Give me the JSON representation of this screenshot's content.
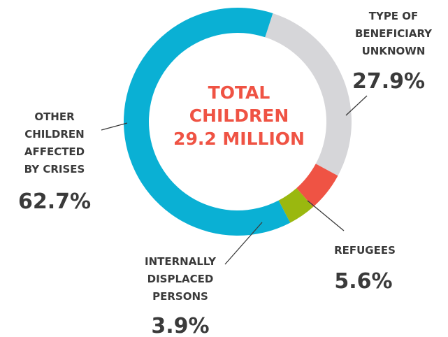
{
  "chart_data": {
    "type": "pie",
    "donut": true,
    "center_text": [
      "TOTAL",
      "CHILDREN",
      "29.2 MILLION"
    ],
    "slices": [
      {
        "name": "TYPE OF BENEFICIARY UNKNOWN",
        "label_lines": [
          "TYPE OF",
          "BENEFICIARY",
          "UNKNOWN"
        ],
        "value": 27.9,
        "value_label": "27.9%",
        "color": "#d6d6d9"
      },
      {
        "name": "REFUGEES",
        "label_lines": [
          "REFUGEES"
        ],
        "value": 5.6,
        "value_label": "5.6%",
        "color": "#ef5344"
      },
      {
        "name": "INTERNALLY DISPLACED PERSONS",
        "label_lines": [
          "INTERNALLY",
          "DISPLACED",
          "PERSONS"
        ],
        "value": 3.9,
        "value_label": "3.9%",
        "color": "#9ab80f"
      },
      {
        "name": "OTHER CHILDREN AFFECTED BY CRISES",
        "label_lines": [
          "OTHER",
          "CHILDREN",
          "AFFECTED",
          "BY CRISES"
        ],
        "value": 62.7,
        "value_label": "62.7%",
        "color": "#0ab0d4"
      }
    ]
  },
  "colors": {
    "center_text": "#ef5344",
    "text": "#3a3a3a"
  }
}
